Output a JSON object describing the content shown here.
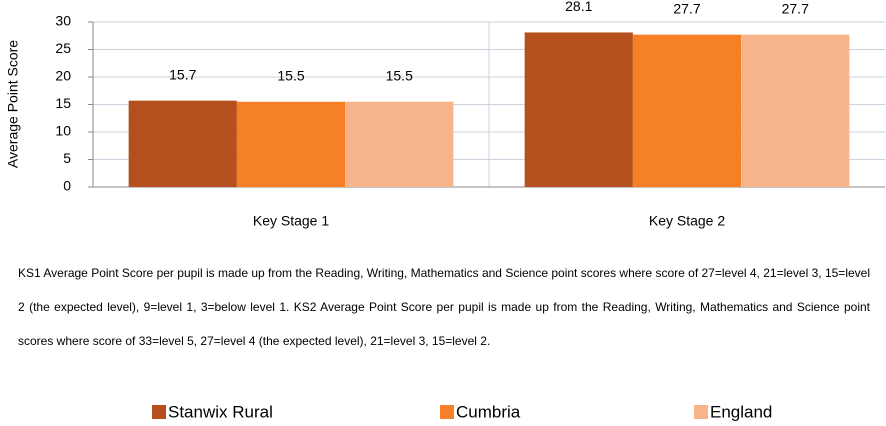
{
  "chart_data": {
    "type": "bar",
    "y_label": "Average Point Score",
    "categories": [
      "Key Stage 1",
      "Key Stage 2"
    ],
    "series": [
      {
        "name": "Stanwix Rural",
        "color": "#b5501e",
        "values": [
          15.7,
          28.1
        ]
      },
      {
        "name": "Cumbria",
        "color": "#f58025",
        "values": [
          15.5,
          27.7
        ]
      },
      {
        "name": "England",
        "color": "#f7b38a",
        "values": [
          15.5,
          27.7
        ]
      }
    ],
    "ylim": [
      0,
      30
    ],
    "yticks": [
      0,
      5,
      10,
      15,
      20,
      25,
      30
    ],
    "grid": true,
    "legend": "bottom",
    "note": "KS1 Average Point Score per pupil is made up from the Reading, Writing, Mathematics and Science point scores where score of 27=level 4, 21=level 3, 15=level 2 (the expected level), 9=level 1, 3=below level 1. KS2 Average Point Score per pupil is made up from the Reading, Writing, Mathematics and Science point scores where score of 33=level 5, 27=level 4 (the expected level), 21=level 3, 15=level 2."
  }
}
